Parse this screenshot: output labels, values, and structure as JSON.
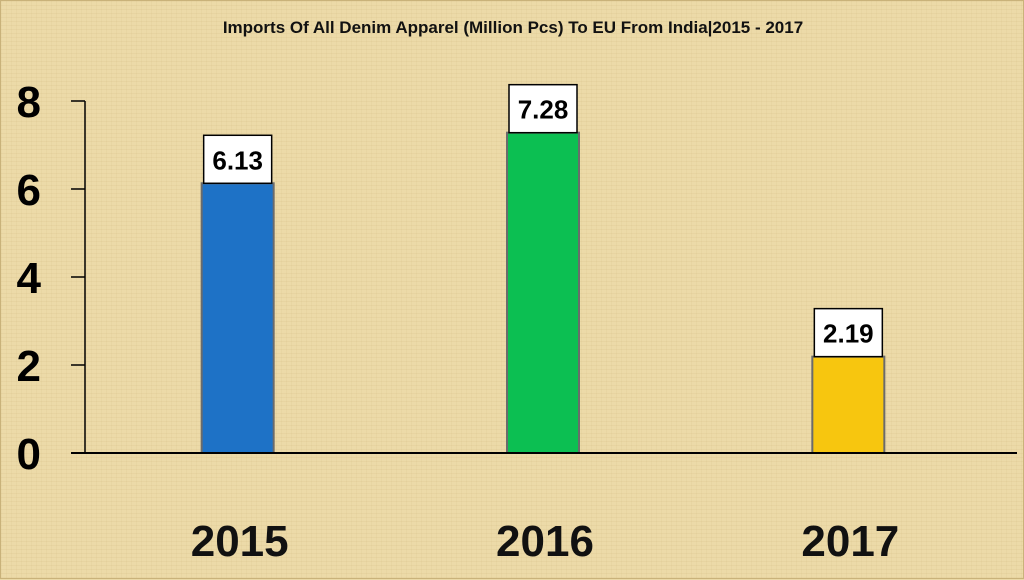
{
  "chart_data": {
    "type": "bar",
    "title": "Imports Of All Denim Apparel (Million Pcs) To EU From India|2015 - 2017",
    "xlabel": "",
    "ylabel": "",
    "categories": [
      "2015",
      "2016",
      "2017"
    ],
    "values": [
      6.13,
      7.28,
      2.19
    ],
    "data_labels": [
      "6.13",
      "7.28",
      "2.19"
    ],
    "ylim": [
      0,
      8
    ],
    "yticks": [
      "0",
      "2",
      "4",
      "6",
      "8"
    ],
    "grid": false,
    "legend": "none",
    "colors": [
      "#1e72c6",
      "#0cbf52",
      "#f7c60f"
    ]
  }
}
